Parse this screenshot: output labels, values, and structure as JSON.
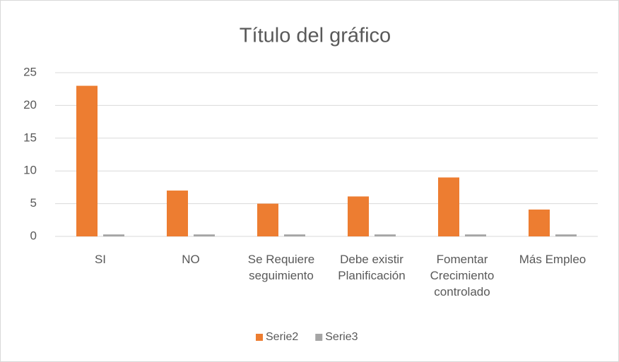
{
  "chart_data": {
    "type": "bar",
    "title": "Título del gráfico",
    "categories": [
      "SI",
      "NO",
      "Se Requiere seguimiento",
      "Debe existir Planificación",
      "Fomentar Crecimiento controlado",
      "Más Empleo"
    ],
    "series": [
      {
        "name": "Serie2",
        "color": "#ed7d31",
        "values": [
          23,
          7,
          5,
          6.1,
          9,
          4.1
        ]
      },
      {
        "name": "Serie3",
        "color": "#a5a5a5",
        "values": [
          0.3,
          0.3,
          0.3,
          0.3,
          0.3,
          0.3
        ]
      }
    ],
    "ylim": [
      0,
      25
    ],
    "yticks": [
      0,
      5,
      10,
      15,
      20,
      25
    ],
    "grid": true,
    "legend": "bottom"
  }
}
